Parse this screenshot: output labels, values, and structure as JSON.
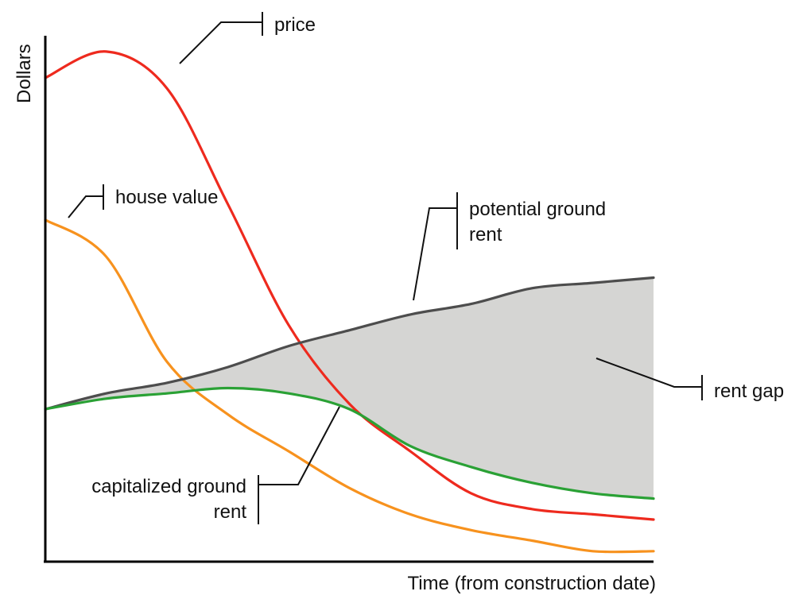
{
  "chart_data": {
    "type": "line",
    "xlabel": "Time (from construction date)",
    "ylabel": "Dollars",
    "xlim": [
      0,
      100
    ],
    "ylim": [
      0,
      100
    ],
    "grid": false,
    "legend": "none",
    "x": [
      0,
      10,
      20,
      30,
      40,
      50,
      60,
      70,
      80,
      90,
      100
    ],
    "series": [
      {
        "name": "price",
        "color": "#ee2a1e",
        "values": [
          92,
          97,
          90,
          68,
          45,
          30,
          21,
          13,
          10,
          9,
          8
        ]
      },
      {
        "name": "house value",
        "color": "#f7921e",
        "values": [
          65,
          58,
          38,
          28,
          21,
          14,
          9,
          6,
          4,
          2,
          2
        ]
      },
      {
        "name": "potential ground rent",
        "color": "#4d4d4d",
        "values": [
          29,
          32,
          34,
          37,
          41,
          44,
          47,
          49,
          52,
          53,
          54
        ]
      },
      {
        "name": "capitalized ground rent",
        "color": "#2aa135",
        "values": [
          29,
          31,
          32,
          33,
          32,
          29,
          22,
          18,
          15,
          13,
          12
        ]
      }
    ],
    "annotations": {
      "rent_gap_label": "rent gap",
      "rent_gap_fill": "#d5d5d3",
      "potential_label_line1": "potential ground",
      "potential_label_line2": "rent",
      "capitalized_label_line1": "capitalized ground",
      "capitalized_label_line2": "rent"
    }
  }
}
